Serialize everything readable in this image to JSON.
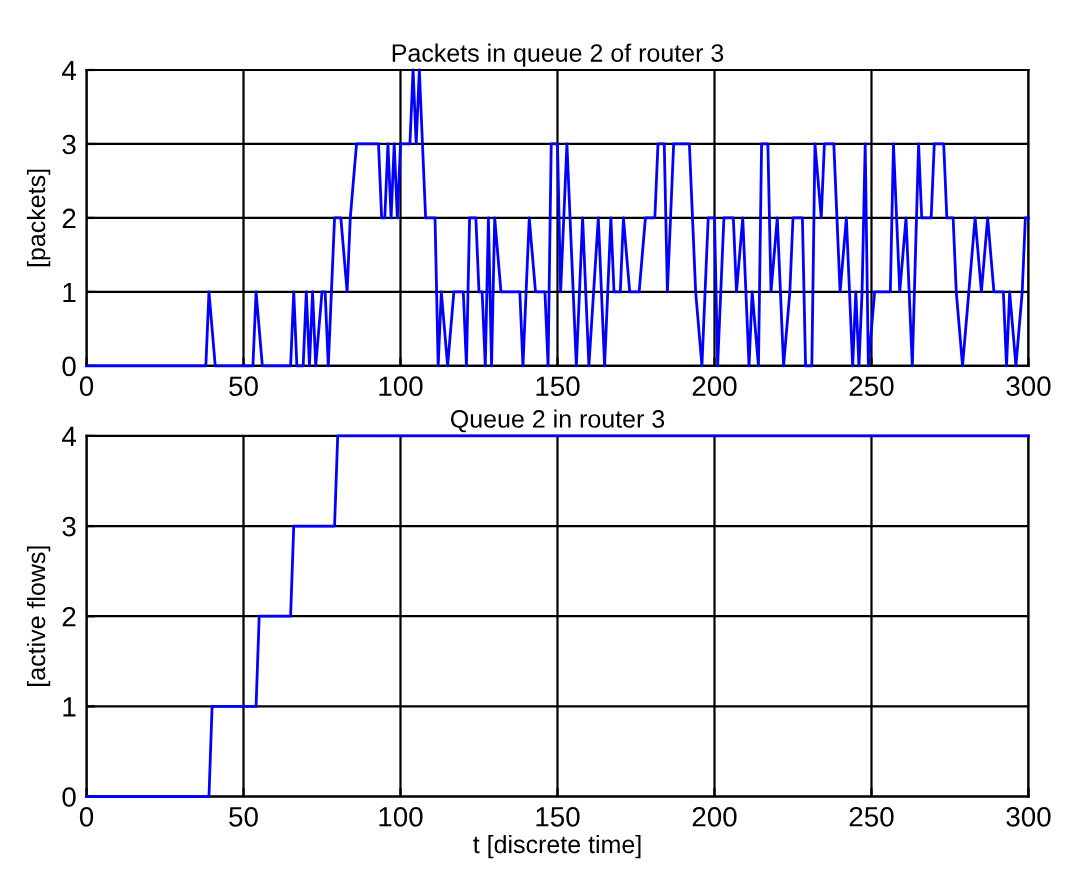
{
  "chart_data": [
    {
      "type": "line",
      "title": "Packets in queue 2 of router 3",
      "ylabel": "[packets]",
      "xlim": [
        0,
        300
      ],
      "ylim": [
        0,
        4
      ],
      "xticks": [
        0,
        50,
        100,
        150,
        200,
        250,
        300
      ],
      "yticks": [
        0,
        1,
        2,
        3,
        4
      ],
      "grid": true,
      "series": [
        {
          "color": "#0000ff",
          "x": [
            0,
            38,
            39,
            41,
            53,
            54,
            56,
            65,
            66,
            67,
            69,
            70,
            71,
            72,
            73,
            75,
            76,
            77,
            79,
            81,
            83,
            84,
            86,
            93,
            94,
            95,
            96,
            97,
            98,
            99,
            100,
            103,
            104,
            105,
            106,
            107,
            108,
            111,
            112,
            113,
            115,
            117,
            120,
            121,
            122,
            124,
            125,
            126,
            127,
            128,
            129,
            130,
            132,
            138,
            139,
            141,
            143,
            146,
            147,
            148,
            150,
            151,
            153,
            154,
            156,
            158,
            160,
            163,
            165,
            167,
            168,
            170,
            171,
            173,
            176,
            178,
            181,
            182,
            184,
            185,
            187,
            192,
            194,
            196,
            198,
            200,
            201,
            203,
            206,
            207,
            209,
            211,
            212,
            214,
            215,
            217,
            218,
            220,
            222,
            224,
            225,
            228,
            229,
            231,
            232,
            234,
            235,
            238,
            240,
            242,
            244,
            245,
            246,
            247,
            248,
            249,
            251,
            256,
            257,
            258,
            259,
            261,
            263,
            265,
            266,
            269,
            270,
            273,
            274,
            276,
            277,
            279,
            281,
            283,
            285,
            287,
            289,
            292,
            293,
            294,
            296,
            298,
            299,
            300
          ],
          "values": [
            0,
            0,
            1,
            0,
            0,
            1,
            0,
            0,
            1,
            0,
            0,
            1,
            0,
            1,
            0,
            1,
            1,
            0,
            2,
            2,
            1,
            2,
            3,
            3,
            2,
            2,
            3,
            2,
            3,
            2,
            3,
            3,
            4,
            3,
            4,
            3,
            2,
            2,
            0,
            1,
            0,
            1,
            1,
            0,
            2,
            2,
            1,
            1,
            0,
            2,
            0,
            2,
            1,
            1,
            0,
            2,
            1,
            1,
            0,
            3,
            3,
            1,
            3,
            2,
            0,
            2,
            0,
            2,
            0,
            2,
            1,
            1,
            2,
            1,
            1,
            2,
            2,
            3,
            3,
            1,
            3,
            3,
            1,
            0,
            2,
            2,
            0,
            2,
            2,
            1,
            2,
            0,
            1,
            0,
            3,
            3,
            1,
            2,
            0,
            1,
            2,
            2,
            0,
            0,
            3,
            2,
            3,
            3,
            1,
            2,
            0,
            1,
            0,
            1,
            3,
            0,
            1,
            1,
            3,
            2,
            1,
            2,
            0,
            3,
            2,
            2,
            3,
            3,
            2,
            2,
            1,
            0,
            1,
            2,
            1,
            2,
            1,
            1,
            0,
            1,
            0,
            1,
            2,
            2
          ]
        }
      ]
    },
    {
      "type": "line",
      "title": "Queue 2 in router 3",
      "xlabel": "t [discrete time]",
      "ylabel": "[active flows]",
      "xlim": [
        0,
        300
      ],
      "ylim": [
        0,
        4
      ],
      "xticks": [
        0,
        50,
        100,
        150,
        200,
        250,
        300
      ],
      "yticks": [
        0,
        1,
        2,
        3,
        4
      ],
      "grid": true,
      "series": [
        {
          "color": "#0000ff",
          "x": [
            0,
            39,
            40,
            54,
            55,
            65,
            66,
            79,
            80,
            300
          ],
          "values": [
            0,
            0,
            1,
            1,
            2,
            2,
            3,
            3,
            4,
            4
          ]
        }
      ]
    }
  ]
}
